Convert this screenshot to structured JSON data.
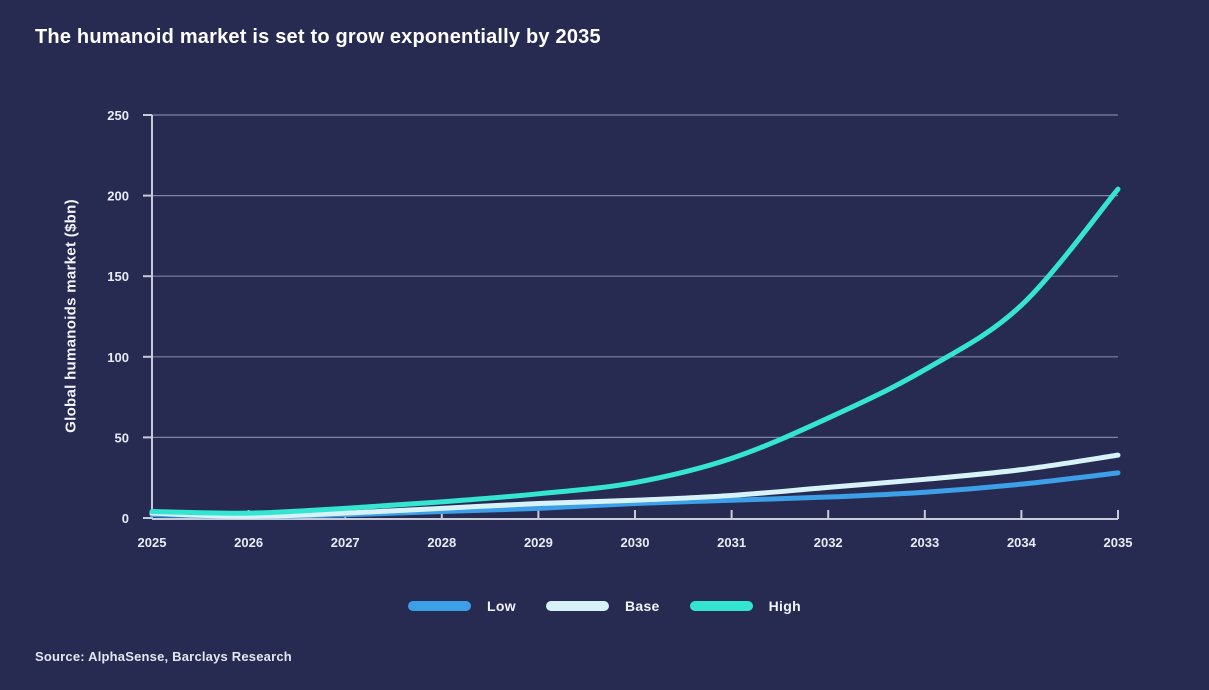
{
  "page": {
    "background_color": "#272b52"
  },
  "title": "The humanoid market is set to grow exponentially by 2035",
  "source": "Source: AlphaSense, Barclays Research",
  "chart_data": {
    "type": "line",
    "title": "The humanoid market is set to grow exponentially by 2035",
    "xlabel": "",
    "ylabel": "Global humanoids market ($bn)",
    "categories": [
      "2025",
      "2026",
      "2027",
      "2028",
      "2029",
      "2030",
      "2031",
      "2032",
      "2033",
      "2034",
      "2035"
    ],
    "ylim": [
      0,
      250
    ],
    "yticks": [
      0,
      50,
      100,
      150,
      200,
      250
    ],
    "grid": "horizontal",
    "legend_position": "bottom-center",
    "grid_color": "#7f859d",
    "axis_color": "#c7cad8",
    "tick_text_color": "#e9ebf4",
    "series": [
      {
        "name": "Low",
        "color": "#3d9fe8",
        "values": [
          2,
          1,
          2,
          4,
          6,
          9,
          11,
          13,
          16,
          21,
          28
        ]
      },
      {
        "name": "Base",
        "color": "#d8f3f8",
        "values": [
          3,
          1,
          3,
          6,
          9,
          11,
          14,
          19,
          24,
          30,
          39
        ]
      },
      {
        "name": "High",
        "color": "#34e5d2",
        "values": [
          4,
          3,
          6,
          10,
          15,
          22,
          37,
          62,
          92,
          132,
          204
        ]
      }
    ]
  }
}
